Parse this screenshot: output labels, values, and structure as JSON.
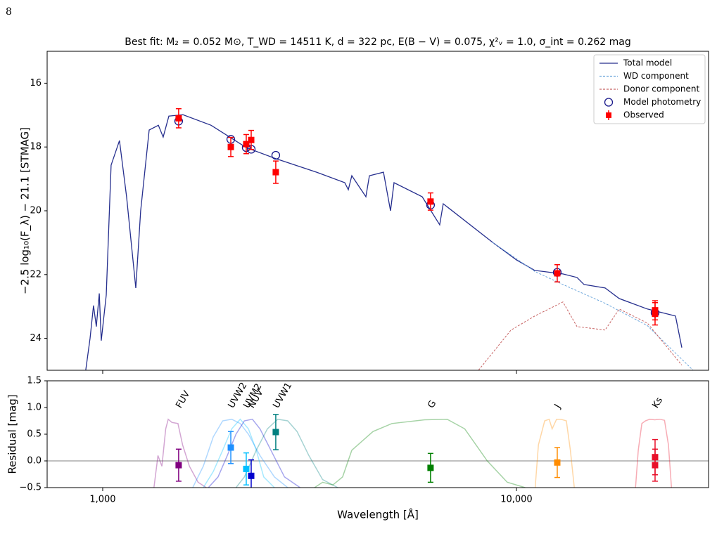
{
  "page_number": "8",
  "chart_data": [
    {
      "type": "line",
      "title": "Best fit: M₂ = 0.052 M⊙, T_WD = 14511 K, d = 322 pc, E(B − V) = 0.075, χ²ᵥ = 1.0, σ_int = 0.262 mag",
      "ylabel": "−2.5 log₁₀(F_λ) − 21.1  [STMAG]",
      "xlim": [
        734,
        29130
      ],
      "log_x": true,
      "ylim": [
        25,
        15
      ],
      "yticks": [
        16,
        18,
        20,
        22,
        24
      ],
      "legend": "upper right",
      "series": [
        {
          "name": "Total model",
          "style": "line",
          "color": "#262f8e",
          "x": [
            910,
            932,
            950,
            965,
            981,
            992,
            1020,
            1048,
            1098,
            1142,
            1202,
            1235,
            1295,
            1363,
            1400,
            1445,
            1563,
            1828,
            2223,
            2600,
            3289,
            3846,
            3923,
            4000,
            4326,
            4411,
            4771,
            4962,
            5059,
            5917,
            6524,
            6654,
            8753,
            10000,
            11071,
            12951,
            14007,
            14564,
            16384,
            17715,
            20718,
            24234,
            25100
          ],
          "values": [
            24.99,
            24.0,
            22.97,
            23.63,
            22.59,
            24.07,
            22.64,
            18.57,
            17.8,
            19.56,
            22.42,
            20.0,
            17.47,
            17.32,
            17.69,
            17.03,
            16.99,
            17.32,
            18.02,
            18.35,
            18.79,
            19.12,
            19.34,
            18.9,
            19.56,
            18.9,
            18.79,
            20.0,
            19.12,
            19.56,
            20.44,
            19.78,
            20.99,
            21.54,
            21.87,
            21.98,
            22.09,
            22.31,
            22.42,
            22.75,
            23.08,
            23.3,
            24.29
          ]
        },
        {
          "name": "WD component",
          "style": "dashed",
          "color": "#6fa8dc",
          "x": [
            8753,
            11071,
            12951,
            16384,
            20718,
            26730
          ],
          "values": [
            20.99,
            21.9,
            22.31,
            22.9,
            23.6,
            25.0
          ]
        },
        {
          "name": "Donor component",
          "style": "dashed",
          "color": "#c86464",
          "x": [
            8094,
            9700,
            11071,
            12951,
            14007,
            16384,
            17715,
            20718,
            25100
          ],
          "values": [
            25.0,
            23.74,
            23.3,
            22.86,
            23.63,
            23.74,
            23.08,
            23.52,
            24.84
          ]
        },
        {
          "name": "Model photometry",
          "style": "circle",
          "color": "#1a1a8c",
          "x": [
            1526,
            2040,
            2223,
            2285,
            2620,
            6200,
            12550,
            21630
          ],
          "values": [
            17.19,
            17.76,
            18.02,
            18.07,
            18.26,
            19.82,
            21.93,
            23.2
          ]
        },
        {
          "name": "Observed",
          "style": "errorbar",
          "color": "#ff0000",
          "x": [
            1526,
            2040,
            2223,
            2285,
            2620,
            6200,
            12550,
            21630,
            21630
          ],
          "values": [
            17.1,
            18.0,
            17.91,
            17.78,
            18.79,
            19.71,
            21.96,
            23.23,
            23.12
          ],
          "errors": [
            0.3,
            0.3,
            0.3,
            0.3,
            0.35,
            0.27,
            0.27,
            0.35,
            0.3
          ]
        }
      ]
    },
    {
      "type": "residual",
      "xlabel": "Wavelength [Å]",
      "ylabel": "Residual [mag]",
      "xlim": [
        734,
        29130
      ],
      "log_x": true,
      "xticks": [
        {
          "value": 1000,
          "label": "1,000"
        },
        {
          "value": 10000,
          "label": "10,000"
        }
      ],
      "ylim": [
        -0.5,
        1.5
      ],
      "yticks": [
        {
          "value": -0.5,
          "label": "−0.5"
        },
        {
          "value": 0,
          "label": "0.0"
        },
        0.5,
        {
          "value": 1,
          "label": "1.0"
        },
        1.5
      ],
      "hline": 0,
      "series": [
        {
          "name": "FUV",
          "color": "#800080",
          "x": [
            1526
          ],
          "values": [
            -0.08
          ],
          "errors": [
            0.3
          ],
          "band": {
            "x": [
              1330,
              1360,
              1390,
              1420,
              1440,
              1470,
              1520,
              1560,
              1620,
              1700,
              1780
            ],
            "values": [
              -0.5,
              0.1,
              -0.1,
              0.6,
              0.78,
              0.72,
              0.7,
              0.3,
              -0.1,
              -0.4,
              -0.5
            ]
          }
        },
        {
          "name": "UVW2",
          "color": "#1e90ff",
          "x": [
            2040
          ],
          "values": [
            0.25
          ],
          "errors": [
            0.3
          ],
          "band": {
            "x": [
              1650,
              1750,
              1850,
              1950,
              2050,
              2150,
              2250,
              2400,
              2600,
              2800
            ],
            "values": [
              -0.5,
              -0.1,
              0.45,
              0.75,
              0.78,
              0.7,
              0.5,
              0.1,
              -0.3,
              -0.5
            ]
          }
        },
        {
          "name": "UVM2",
          "color": "#00bfff",
          "x": [
            2223
          ],
          "values": [
            -0.15
          ],
          "errors": [
            0.3
          ],
          "band": {
            "x": [
              1750,
              1850,
              1950,
              2050,
              2150,
              2250,
              2350,
              2450,
              2600
            ],
            "values": [
              -0.5,
              -0.2,
              0.2,
              0.6,
              0.78,
              0.6,
              0.2,
              -0.3,
              -0.5
            ]
          }
        },
        {
          "name": "NUV",
          "color": "#0000cd",
          "x": [
            2285
          ],
          "values": [
            -0.28
          ],
          "errors": [
            0.3
          ],
          "band": {
            "x": [
              1800,
              1900,
              2000,
              2100,
              2200,
              2300,
              2400,
              2550,
              2750,
              3000
            ],
            "values": [
              -0.5,
              -0.3,
              0.1,
              0.5,
              0.75,
              0.78,
              0.6,
              0.2,
              -0.3,
              -0.5
            ]
          }
        },
        {
          "name": "UVW1",
          "color": "#008080",
          "x": [
            2620
          ],
          "values": [
            0.54
          ],
          "errors": [
            0.33
          ],
          "band": {
            "x": [
              2100,
              2200,
              2350,
              2500,
              2650,
              2800,
              2950,
              3150,
              3400,
              3700
            ],
            "values": [
              -0.5,
              -0.3,
              0.2,
              0.6,
              0.78,
              0.75,
              0.55,
              0.1,
              -0.35,
              -0.5
            ]
          }
        },
        {
          "name": "G",
          "color": "#008000",
          "x": [
            6200
          ],
          "values": [
            -0.13
          ],
          "errors": [
            0.27
          ],
          "band": {
            "x": [
              3250,
              3400,
              3600,
              3800,
              4000,
              4500,
              5000,
              6000,
              6800,
              7500,
              8500,
              9500,
              10500
            ],
            "values": [
              -0.5,
              -0.4,
              -0.45,
              -0.3,
              0.2,
              0.55,
              0.7,
              0.77,
              0.78,
              0.6,
              0,
              -0.4,
              -0.5
            ]
          }
        },
        {
          "name": "J",
          "color": "#ff8c00",
          "x": [
            12550
          ],
          "values": [
            -0.03
          ],
          "errors": [
            0.28
          ],
          "band": {
            "x": [
              11100,
              11300,
              11700,
              12000,
              12200,
              12500,
              12800,
              13200,
              13500,
              13800
            ],
            "values": [
              -0.5,
              0.3,
              0.75,
              0.78,
              0.6,
              0.78,
              0.78,
              0.75,
              0.2,
              -0.5
            ]
          }
        },
        {
          "name": "Ks",
          "color": "#e8102a",
          "x": [
            21630,
            21630
          ],
          "values": [
            0.07,
            -0.08
          ],
          "errors": [
            0.33,
            0.3
          ],
          "band": {
            "x": [
              19400,
              19700,
              20100,
              20500,
              21000,
              21600,
              22200,
              22800,
              23300,
              23700
            ],
            "values": [
              -0.5,
              0.2,
              0.7,
              0.75,
              0.78,
              0.77,
              0.78,
              0.76,
              0.3,
              -0.5
            ]
          }
        }
      ]
    }
  ]
}
